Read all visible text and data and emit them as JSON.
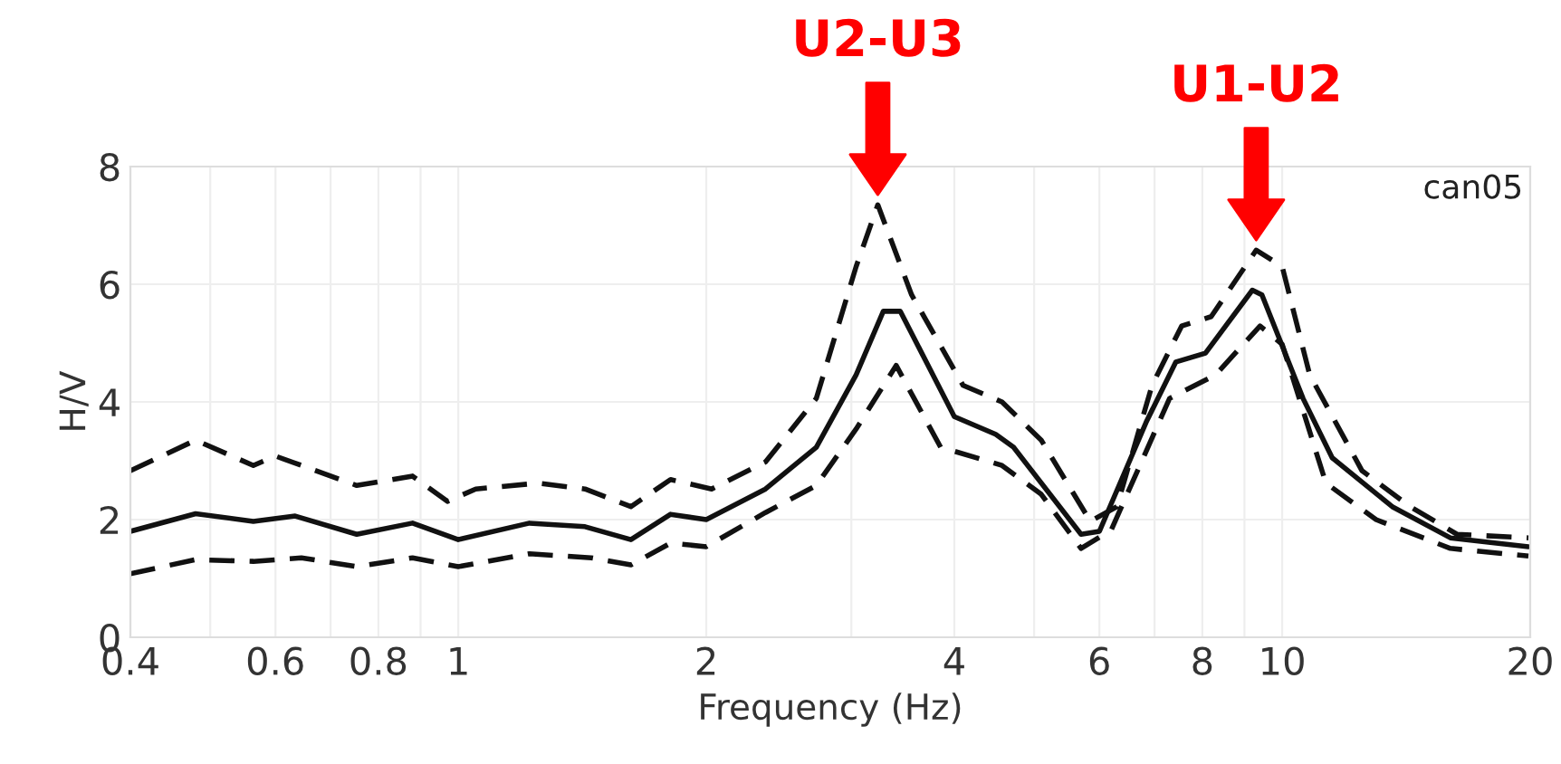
{
  "chart_data": {
    "type": "line",
    "xlabel": "Frequency (Hz)",
    "ylabel": "H/V",
    "log": "x",
    "grid": true,
    "xlim": [
      0.4,
      20
    ],
    "ylim": [
      0,
      8
    ],
    "xticks": [
      0.4,
      0.6,
      0.8,
      1,
      2,
      4,
      6,
      8,
      10,
      20
    ],
    "yticks": [
      0,
      2,
      4,
      6,
      8
    ],
    "series": [
      {
        "color": "#111111",
        "line_style": "solid",
        "x": [
          0.4,
          0.48,
          0.564,
          0.634,
          0.753,
          0.88,
          1.0,
          1.22,
          1.425,
          1.62,
          1.81,
          2.0,
          2.36,
          2.72,
          3.04,
          3.28,
          3.44,
          4.0,
          4.49,
          4.72,
          5.7,
          6.0,
          6.84,
          7.43,
          8.07,
          9.2,
          9.45,
          10.6,
          11.5,
          13.6,
          16.0,
          19.9
        ],
        "values": [
          1.8,
          2.1,
          1.97,
          2.06,
          1.75,
          1.94,
          1.66,
          1.94,
          1.88,
          1.66,
          2.09,
          2.0,
          2.52,
          3.23,
          4.46,
          5.54,
          5.54,
          3.75,
          3.45,
          3.23,
          1.75,
          1.8,
          3.66,
          4.68,
          4.83,
          5.9,
          5.82,
          4.06,
          3.05,
          2.22,
          1.69,
          1.54
        ]
      },
      {
        "color": "#111111",
        "line_style": "dashed",
        "x": [
          0.4,
          0.48,
          0.564,
          0.6,
          0.753,
          0.88,
          0.97,
          1.05,
          1.25,
          1.425,
          1.62,
          1.81,
          2.03,
          2.36,
          2.72,
          3.04,
          3.23,
          3.55,
          4.1,
          4.57,
          5.1,
          5.85,
          6.3,
          6.95,
          7.55,
          8.2,
          9.3,
          10.0,
          10.8,
          12.5,
          14.3,
          16.3,
          19.9
        ],
        "values": [
          2.83,
          3.35,
          2.92,
          3.08,
          2.58,
          2.74,
          2.31,
          2.52,
          2.62,
          2.52,
          2.22,
          2.68,
          2.52,
          2.98,
          4.06,
          6.3,
          7.35,
          5.82,
          4.28,
          4.0,
          3.35,
          1.97,
          2.22,
          4.28,
          5.29,
          5.45,
          6.58,
          6.3,
          4.46,
          2.83,
          2.22,
          1.75,
          1.69
        ]
      },
      {
        "color": "#111111",
        "line_style": "dashed",
        "x": [
          0.4,
          0.48,
          0.564,
          0.645,
          0.753,
          0.88,
          1.0,
          1.22,
          1.45,
          1.62,
          1.81,
          2.0,
          2.36,
          2.72,
          3.04,
          3.4,
          3.85,
          4.57,
          5.1,
          5.7,
          6.2,
          7.3,
          8.3,
          9.4,
          10.0,
          11.3,
          13.0,
          16.0,
          19.9
        ],
        "values": [
          1.08,
          1.32,
          1.29,
          1.35,
          1.2,
          1.35,
          1.2,
          1.42,
          1.35,
          1.23,
          1.6,
          1.54,
          2.12,
          2.58,
          3.54,
          4.62,
          3.23,
          2.92,
          2.43,
          1.51,
          1.82,
          4.06,
          4.46,
          5.29,
          4.98,
          2.62,
          2.0,
          1.51,
          1.38
        ]
      }
    ],
    "annotations": [
      {
        "text": "U2-U3",
        "x": 3.23,
        "y": 7.35
      },
      {
        "text": "U1-U2",
        "x": 9.3,
        "y": 6.58
      },
      "can05"
    ]
  }
}
